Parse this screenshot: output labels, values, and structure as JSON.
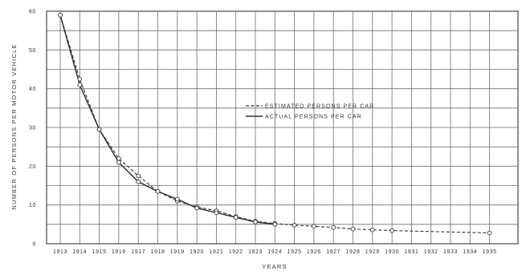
{
  "chart_data": {
    "type": "line",
    "xlabel": "YEARS",
    "ylabel": "NUMBER OF PERSONS PER MOTOR VEHICLE",
    "categories": [
      "1913",
      "1914",
      "1915",
      "1916",
      "1917",
      "1918",
      "1919",
      "1920",
      "1921",
      "1922",
      "1923",
      "1924",
      "1925",
      "1926",
      "1927",
      "1928",
      "1929",
      "1930",
      "1931",
      "1932",
      "1933",
      "1934",
      "1935"
    ],
    "ylim": [
      0,
      60
    ],
    "yticks": [
      "0",
      "10",
      "20",
      "30",
      "40",
      "50",
      "60"
    ],
    "grid": true,
    "legend_position": "center-right",
    "series": [
      {
        "name": "ESTIMATED PERSONS PER CAR",
        "style": "dashed",
        "color": "#333333",
        "values": [
          59,
          42.5,
          29.5,
          22,
          17.5,
          13.5,
          11,
          9.5,
          8.5,
          7,
          5.8,
          5.2,
          4.8,
          4.5,
          4.2,
          3.8,
          3.6,
          3.4,
          null,
          null,
          null,
          null,
          2.8
        ]
      },
      {
        "name": "ACTUAL PERSONS PER CAR",
        "style": "solid",
        "color": "#333333",
        "values": [
          59,
          41,
          29.5,
          21,
          16,
          13.5,
          11.5,
          9.2,
          8,
          6.8,
          5.6,
          5,
          null,
          null,
          null,
          null,
          null,
          null,
          null,
          null,
          null,
          null,
          null
        ]
      }
    ]
  }
}
